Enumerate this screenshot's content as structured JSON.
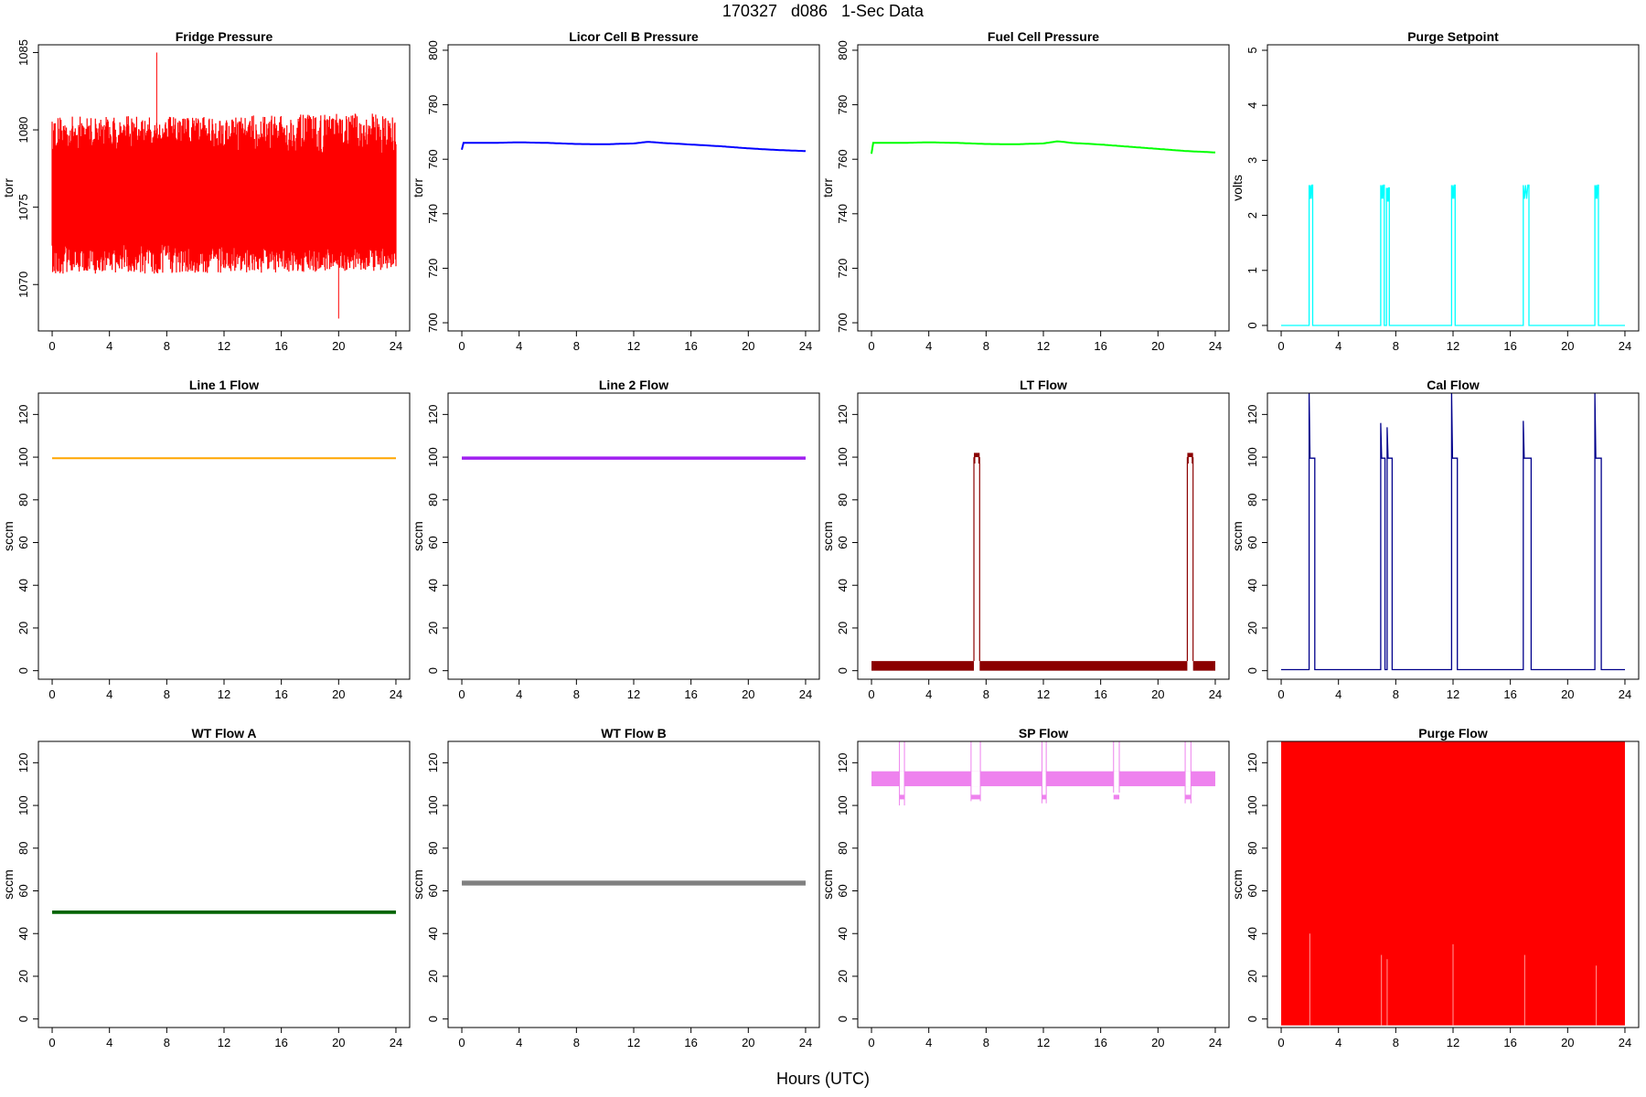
{
  "figure": {
    "title": "170327   d086   1-Sec Data",
    "xlabel": "Hours (UTC)"
  },
  "chart_data": [
    {
      "type": "line",
      "title": "Fridge Pressure",
      "ylabel": "torr",
      "xlim": [
        0,
        24
      ],
      "xticks": [
        0,
        4,
        8,
        12,
        16,
        20,
        24
      ],
      "ylim": [
        1067,
        1085.5
      ],
      "yticks": [
        1070,
        1075,
        1080,
        1085
      ],
      "color": "#ff0000",
      "x": [
        0,
        2,
        4,
        6,
        7.3,
        8,
        10,
        12,
        14,
        16,
        18,
        20,
        22,
        24
      ],
      "y": [
        1075.5,
        1075.5,
        1075.5,
        1075.5,
        1075.6,
        1075.5,
        1075.3,
        1075.5,
        1075.3,
        1075.2,
        1075.0,
        1074.8,
        1074.6,
        1074.4
      ],
      "noise_range": [
        1071.5,
        1080.0
      ],
      "extremes": {
        "max": 1085.0,
        "max_at": 7.3,
        "min": 1067.8,
        "min_at": 20.0
      }
    },
    {
      "type": "line",
      "title": "Licor Cell B Pressure",
      "ylabel": "torr",
      "xlim": [
        0,
        24
      ],
      "xticks": [
        0,
        4,
        8,
        12,
        16,
        20,
        24
      ],
      "ylim": [
        697,
        802
      ],
      "yticks": [
        700,
        720,
        740,
        760,
        780,
        800
      ],
      "color": "#0000ff",
      "x": [
        0,
        0.1,
        2,
        4,
        6,
        8,
        10,
        12,
        13,
        14,
        16,
        18,
        20,
        22,
        24
      ],
      "y": [
        763.5,
        766,
        766,
        766.2,
        766,
        765.6,
        765.5,
        765.8,
        766.4,
        766,
        765.4,
        764.8,
        764,
        763.4,
        763
      ]
    },
    {
      "type": "line",
      "title": "Fuel Cell Pressure",
      "ylabel": "torr",
      "xlim": [
        0,
        24
      ],
      "xticks": [
        0,
        4,
        8,
        12,
        16,
        20,
        24
      ],
      "ylim": [
        697,
        802
      ],
      "yticks": [
        700,
        720,
        740,
        760,
        780,
        800
      ],
      "color": "#00ff00",
      "x": [
        0,
        0.1,
        2,
        4,
        6,
        8,
        10,
        12,
        13,
        14,
        16,
        18,
        20,
        22,
        24
      ],
      "y": [
        762,
        766,
        766,
        766.2,
        766,
        765.6,
        765.5,
        765.8,
        766.6,
        766,
        765.4,
        764.6,
        763.8,
        763,
        762.5
      ]
    },
    {
      "type": "line",
      "title": "Purge Setpoint",
      "ylabel": "volts",
      "xlim": [
        0,
        24
      ],
      "xticks": [
        0,
        4,
        8,
        12,
        16,
        20,
        24
      ],
      "ylim": [
        -0.1,
        5.1
      ],
      "yticks": [
        0,
        1,
        2,
        3,
        4,
        5
      ],
      "color": "#00ffff",
      "baseline": 0,
      "pulses": [
        {
          "start": 1.95,
          "end": 2.2,
          "value": 2.55
        },
        {
          "start": 6.95,
          "end": 7.2,
          "value": 2.55
        },
        {
          "start": 7.35,
          "end": 7.55,
          "value": 2.5
        },
        {
          "start": 11.9,
          "end": 12.15,
          "value": 2.55
        },
        {
          "start": 16.9,
          "end": 17.3,
          "value": 2.55
        },
        {
          "start": 21.9,
          "end": 22.15,
          "value": 2.55
        }
      ]
    },
    {
      "type": "line",
      "title": "Line 1 Flow",
      "ylabel": "sccm",
      "xlim": [
        0,
        24
      ],
      "xticks": [
        0,
        4,
        8,
        12,
        16,
        20,
        24
      ],
      "ylim": [
        -4,
        130
      ],
      "yticks": [
        0,
        20,
        40,
        60,
        80,
        100,
        120
      ],
      "color": "#ffa500",
      "x": [
        0,
        24
      ],
      "y": [
        99.5,
        99.5
      ]
    },
    {
      "type": "line",
      "title": "Line 2 Flow",
      "ylabel": "sccm",
      "xlim": [
        0,
        24
      ],
      "xticks": [
        0,
        4,
        8,
        12,
        16,
        20,
        24
      ],
      "ylim": [
        -4,
        130
      ],
      "yticks": [
        0,
        20,
        40,
        60,
        80,
        100,
        120
      ],
      "color": "#a020f0",
      "x": [
        0,
        24
      ],
      "y": [
        99.5,
        99.5
      ],
      "band": [
        98.8,
        100.3
      ]
    },
    {
      "type": "line",
      "title": "LT Flow",
      "ylabel": "sccm",
      "xlim": [
        0,
        24
      ],
      "xticks": [
        0,
        4,
        8,
        12,
        16,
        20,
        24
      ],
      "ylim": [
        -4,
        130
      ],
      "yticks": [
        0,
        20,
        40,
        60,
        80,
        100,
        120
      ],
      "color": "#8b0000",
      "baseline_band": [
        0,
        4.5
      ],
      "pulses": [
        {
          "start": 7.15,
          "end": 7.55,
          "value": 100,
          "band": [
            97,
            102
          ]
        },
        {
          "start": 22.05,
          "end": 22.45,
          "value": 100,
          "band": [
            97,
            102
          ]
        }
      ]
    },
    {
      "type": "line",
      "title": "Cal Flow",
      "ylabel": "sccm",
      "xlim": [
        0,
        24
      ],
      "xticks": [
        0,
        4,
        8,
        12,
        16,
        20,
        24
      ],
      "ylim": [
        -4,
        130
      ],
      "yticks": [
        0,
        20,
        40,
        60,
        80,
        100,
        120
      ],
      "color": "#00008b",
      "baseline": 0.5,
      "pulses": [
        {
          "start": 1.95,
          "end": 2.35,
          "value": 99.5,
          "peak": 130
        },
        {
          "start": 6.95,
          "end": 7.25,
          "value": 99.5,
          "peak": 116
        },
        {
          "start": 7.4,
          "end": 7.75,
          "value": 99.5,
          "peak": 114
        },
        {
          "start": 11.9,
          "end": 12.3,
          "value": 99.5,
          "peak": 130
        },
        {
          "start": 16.9,
          "end": 17.45,
          "value": 99.5,
          "peak": 117
        },
        {
          "start": 21.9,
          "end": 22.35,
          "value": 99.5,
          "peak": 130
        }
      ]
    },
    {
      "type": "line",
      "title": "WT Flow A",
      "ylabel": "sccm",
      "xlim": [
        0,
        24
      ],
      "xticks": [
        0,
        4,
        8,
        12,
        16,
        20,
        24
      ],
      "ylim": [
        -4,
        130
      ],
      "yticks": [
        0,
        20,
        40,
        60,
        80,
        100,
        120
      ],
      "color": "#006400",
      "x": [
        0,
        24
      ],
      "y": [
        50,
        50
      ],
      "band": [
        49.2,
        50.8
      ]
    },
    {
      "type": "line",
      "title": "WT Flow B",
      "ylabel": "sccm",
      "xlim": [
        0,
        24
      ],
      "xticks": [
        0,
        4,
        8,
        12,
        16,
        20,
        24
      ],
      "ylim": [
        -4,
        130
      ],
      "yticks": [
        0,
        20,
        40,
        60,
        80,
        100,
        120
      ],
      "color": "#808080",
      "x": [
        0,
        24
      ],
      "y": [
        63.5,
        63.5
      ],
      "band": [
        62.5,
        64.8
      ]
    },
    {
      "type": "line",
      "title": "SP Flow",
      "ylabel": "sccm",
      "xlim": [
        0,
        24
      ],
      "xticks": [
        0,
        4,
        8,
        12,
        16,
        20,
        24
      ],
      "ylim": [
        -4,
        130
      ],
      "yticks": [
        0,
        20,
        40,
        60,
        80,
        100,
        120
      ],
      "color": "#ee82ee",
      "x": [
        0,
        24
      ],
      "y": [
        112.5,
        112.5
      ],
      "band": [
        109,
        116
      ],
      "events": [
        {
          "start": 1.95,
          "end": 2.3,
          "low": 100,
          "high": 130
        },
        {
          "start": 6.95,
          "end": 7.6,
          "low": 102,
          "high": 130
        },
        {
          "start": 11.9,
          "end": 12.2,
          "low": 101,
          "high": 130
        },
        {
          "start": 16.9,
          "end": 17.3,
          "low": 106,
          "high": 130
        },
        {
          "start": 21.9,
          "end": 22.3,
          "low": 101,
          "high": 130
        }
      ]
    },
    {
      "type": "line",
      "title": "Purge Flow",
      "ylabel": "sccm",
      "xlim": [
        0,
        24
      ],
      "xticks": [
        0,
        4,
        8,
        12,
        16,
        20,
        24
      ],
      "ylim": [
        -4,
        130
      ],
      "yticks": [
        0,
        20,
        40,
        60,
        80,
        100,
        120
      ],
      "color": "#ff0000",
      "fill_range": [
        -3,
        130
      ],
      "gaps": [
        {
          "x": 2.0,
          "low": -3,
          "high": 40
        },
        {
          "x": 7.0,
          "low": -3,
          "high": 30
        },
        {
          "x": 7.4,
          "low": -3,
          "high": 28
        },
        {
          "x": 12.0,
          "low": -3,
          "high": 35
        },
        {
          "x": 17.0,
          "low": -3,
          "high": 30
        },
        {
          "x": 22.0,
          "low": -3,
          "high": 25
        }
      ]
    }
  ]
}
